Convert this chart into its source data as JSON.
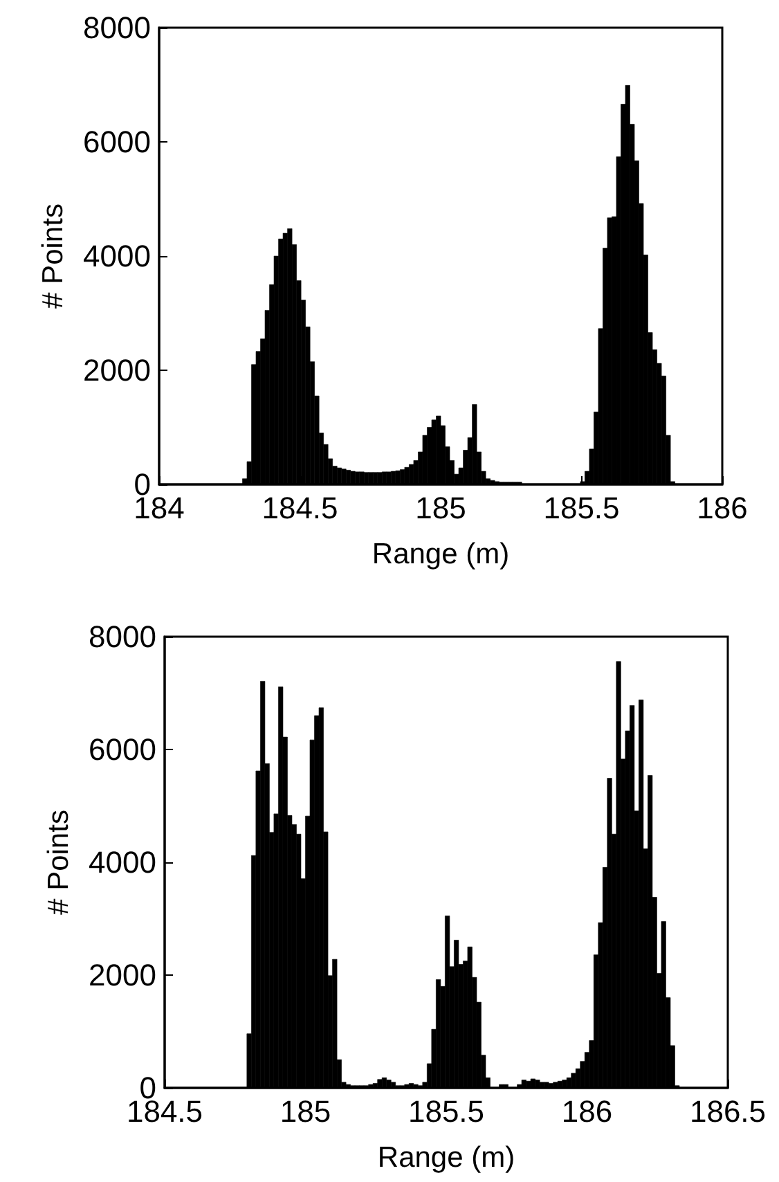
{
  "chart_data": [
    {
      "type": "histogram",
      "xlabel": "Range (m)",
      "ylabel": "# Points",
      "color": "#000000",
      "xlim": [
        184,
        186
      ],
      "xticks": [
        184,
        184.5,
        185,
        185.5,
        186
      ],
      "ylim": [
        0,
        8000
      ],
      "yticks": [
        0,
        2000,
        4000,
        6000,
        8000
      ],
      "bins": [
        184.296,
        184.312,
        184.328,
        184.344,
        184.36,
        184.376,
        184.392,
        184.408,
        184.424,
        184.44,
        184.456,
        184.472,
        184.488,
        184.504,
        184.52,
        184.536,
        184.552,
        184.568,
        184.584,
        184.6,
        184.616,
        184.632,
        184.648,
        184.664,
        184.68,
        184.696,
        184.712,
        184.728,
        184.744,
        184.76,
        184.776,
        184.792,
        184.808,
        184.824,
        184.84,
        184.856,
        184.872,
        184.888,
        184.904,
        184.92,
        184.936,
        184.952,
        184.968,
        184.984,
        185,
        185.016,
        185.032,
        185.048,
        185.064,
        185.08,
        185.096,
        185.112,
        185.128,
        185.144,
        185.16,
        185.176,
        185.192,
        185.208,
        185.224,
        185.24,
        185.256,
        185.272,
        185.288,
        185.304,
        185.32,
        185.336,
        185.352,
        185.368,
        185.384,
        185.4,
        185.416,
        185.432,
        185.448,
        185.464,
        185.48,
        185.496,
        185.512,
        185.528,
        185.544,
        185.56,
        185.576,
        185.592,
        185.608,
        185.624,
        185.64,
        185.656,
        185.672,
        185.688,
        185.704,
        185.72,
        185.736,
        185.752,
        185.768,
        185.784,
        185.8,
        185.816,
        185.832
      ],
      "values": [
        100,
        400,
        2100,
        2330,
        2550,
        3050,
        3500,
        4000,
        4300,
        4400,
        4480,
        4200,
        3570,
        3230,
        2760,
        2150,
        1550,
        900,
        700,
        450,
        320,
        290,
        270,
        250,
        230,
        220,
        220,
        210,
        210,
        210,
        210,
        220,
        220,
        230,
        240,
        260,
        300,
        350,
        420,
        570,
        860,
        1000,
        1130,
        1200,
        1030,
        660,
        420,
        180,
        290,
        600,
        820,
        1400,
        570,
        230,
        100,
        70,
        50,
        40,
        40,
        40,
        40,
        40,
        0,
        0,
        0,
        0,
        0,
        0,
        0,
        0,
        0,
        0,
        0,
        0,
        null,
        50,
        230,
        620,
        1270,
        2730,
        4140,
        4670,
        4690,
        5740,
        6660,
        6990,
        6310,
        5670,
        4920,
        4020,
        2660,
        2360,
        2120,
        1900,
        860,
        50
      ]
    },
    {
      "type": "histogram",
      "xlabel": "Range (m)",
      "ylabel": "# Points",
      "color": "#000000",
      "xlim": [
        184.5,
        186.5
      ],
      "xticks": [
        184.5,
        185,
        185.5,
        186,
        186.5
      ],
      "ylim": [
        0,
        8000
      ],
      "yticks": [
        0,
        2000,
        4000,
        6000,
        8000
      ],
      "bins": [
        184.776,
        184.792,
        184.808,
        184.824,
        184.84,
        184.856,
        184.872,
        184.888,
        184.904,
        184.92,
        184.936,
        184.952,
        184.968,
        184.984,
        185,
        185.016,
        185.032,
        185.048,
        185.064,
        185.08,
        185.096,
        185.112,
        185.128,
        185.144,
        185.16,
        185.176,
        185.192,
        185.208,
        185.224,
        185.24,
        185.256,
        185.272,
        185.288,
        185.304,
        185.32,
        185.336,
        185.352,
        185.368,
        185.384,
        185.4,
        185.416,
        185.432,
        185.448,
        185.464,
        185.48,
        185.496,
        185.512,
        185.528,
        185.544,
        185.56,
        185.576,
        185.592,
        185.608,
        185.624,
        185.64,
        185.656,
        185.672,
        185.688,
        185.704,
        185.72,
        185.736,
        185.752,
        185.768,
        185.784,
        185.8,
        185.816,
        185.832,
        185.848,
        185.864,
        185.88,
        185.896,
        185.912,
        185.928,
        185.944,
        185.96,
        185.976,
        185.992,
        186.008,
        186.024,
        186.04,
        186.056,
        186.072,
        186.088,
        186.104,
        186.12,
        186.136,
        186.152,
        186.168,
        186.184,
        186.2,
        186.216,
        186.232,
        186.248,
        186.264,
        186.28,
        186.296,
        186.312,
        186.328
      ],
      "values": [
        null,
        960,
        4120,
        5620,
        7210,
        5750,
        4530,
        4860,
        7110,
        6220,
        4830,
        4670,
        4500,
        3710,
        4820,
        6170,
        6600,
        6740,
        4540,
        1990,
        2280,
        500,
        100,
        60,
        40,
        40,
        40,
        40,
        60,
        80,
        150,
        180,
        140,
        100,
        40,
        40,
        60,
        80,
        60,
        40,
        100,
        430,
        1040,
        1920,
        1800,
        3050,
        2150,
        2620,
        2190,
        2250,
        2500,
        1960,
        1520,
        580,
        180,
        null,
        null,
        60,
        60,
        null,
        null,
        60,
        140,
        120,
        160,
        140,
        100,
        100,
        80,
        100,
        120,
        140,
        180,
        260,
        340,
        470,
        630,
        840,
        2360,
        2930,
        3910,
        5490,
        4500,
        7560,
        5830,
        6330,
        6780,
        4910,
        6880,
        4240,
        5540,
        3380,
        2030,
        2950,
        1600,
        750,
        40
      ]
    }
  ]
}
